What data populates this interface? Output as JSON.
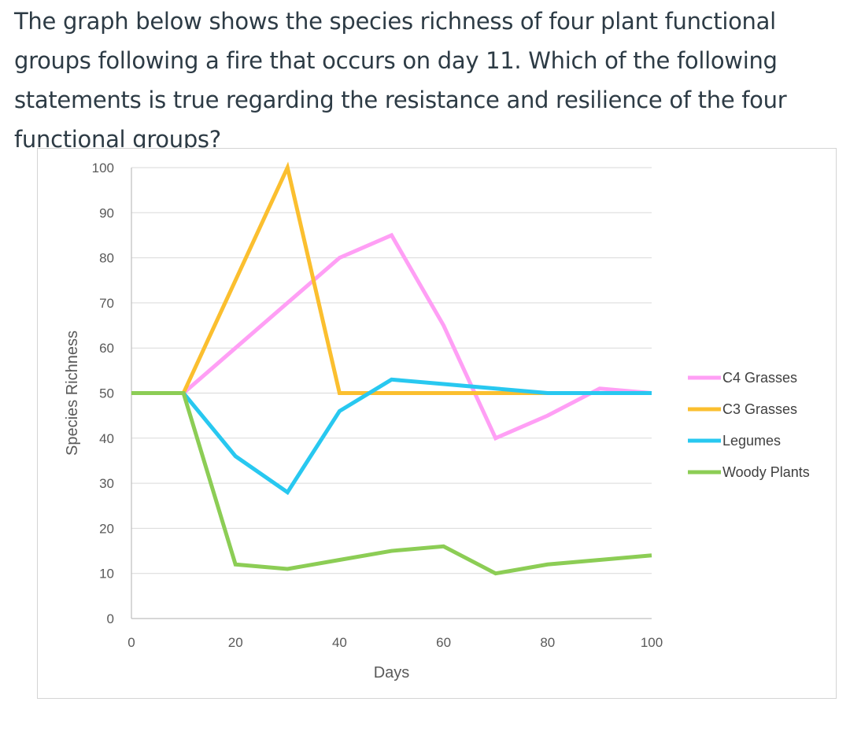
{
  "question": {
    "text": "The graph below shows the species richness of four plant functional groups following a fire that occurs on day 11.  Which of the following statements is true regarding the resistance and resilience of the four functional groups?"
  },
  "chart_data": {
    "type": "line",
    "title": "",
    "xlabel": "Days",
    "ylabel": "Species Richness",
    "xlim": [
      0,
      100
    ],
    "ylim": [
      0,
      100
    ],
    "xticks": [
      0,
      20,
      40,
      60,
      80,
      100
    ],
    "yticks": [
      0,
      10,
      20,
      30,
      40,
      50,
      60,
      70,
      80,
      90,
      100
    ],
    "grid": "horizontal",
    "legend_position": "right",
    "series": [
      {
        "name": "C4 Grasses",
        "color": "#ff9ff5",
        "x": [
          0,
          10,
          20,
          30,
          40,
          50,
          60,
          70,
          80,
          90,
          100
        ],
        "y": [
          50,
          50,
          60,
          70,
          80,
          85,
          65,
          40,
          45,
          51,
          50
        ]
      },
      {
        "name": "C3 Grasses",
        "color": "#fbbf2f",
        "x": [
          10,
          20,
          30,
          40,
          50,
          60,
          70,
          80,
          90,
          100
        ],
        "y": [
          50,
          75,
          100,
          50,
          50,
          50,
          50,
          50,
          50,
          50
        ]
      },
      {
        "name": "Legumes",
        "color": "#28c8f0",
        "x": [
          10,
          20,
          30,
          40,
          50,
          60,
          70,
          80,
          90,
          100
        ],
        "y": [
          50,
          36,
          28,
          46,
          53,
          52,
          51,
          50,
          50,
          50
        ]
      },
      {
        "name": "Woody Plants",
        "color": "#8ccd55",
        "x": [
          0,
          10,
          20,
          30,
          40,
          50,
          60,
          70,
          80,
          90,
          100
        ],
        "y": [
          50,
          50,
          12,
          11,
          13,
          15,
          16,
          10,
          12,
          13,
          14
        ]
      }
    ]
  }
}
